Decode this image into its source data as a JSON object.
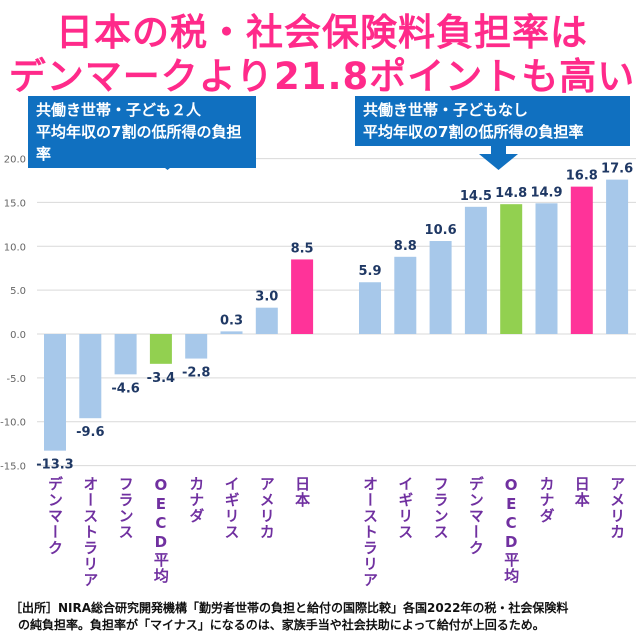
{
  "title": {
    "line1": "日本の税・社会保険料負担率は",
    "line2": "デンマークより21.8ポイントも高い"
  },
  "callouts": [
    {
      "line1": "共働き世帯・子ども２人",
      "line2": "平均年収の7割の低所得の負担率"
    },
    {
      "line1": "共働き世帯・子どもなし",
      "line2": "平均年収の7割の低所得の負担率"
    }
  ],
  "note": {
    "line1": "［出所］NIRA総合研究開発機構「勤労者世帯の負担と給付の国際比較」各国2022年の税・社会保険料",
    "line2": "の純負担率。負担率が「マイナス」になるのは、家族手当や社会扶助によって給付が上回るため。"
  },
  "colors": {
    "default": "#a7c8ea",
    "oecd": "#92d050",
    "japan": "#ff3399",
    "label": "#7030a0",
    "value": "#1f3864"
  },
  "chart_data": {
    "type": "bar",
    "ylim": [
      -15,
      20
    ],
    "yticks": [
      "20.0",
      "15.0",
      "10.0",
      "5.0",
      "0.0",
      "-5.0",
      "-10.0",
      "-15.0"
    ],
    "ytick_values": [
      20,
      15,
      10,
      5,
      0,
      -5,
      -10,
      -15
    ],
    "grid": true,
    "groups": [
      {
        "name": "共働き世帯・子ども２人",
        "categories": [
          "デンマーク",
          "オーストラリア",
          "フランス",
          "OECD平均",
          "カナダ",
          "イギリス",
          "アメリカ",
          "日本"
        ],
        "values": [
          -13.3,
          -9.6,
          -4.6,
          -3.4,
          -2.8,
          0.3,
          3.0,
          8.5
        ],
        "labels": [
          "-13.3",
          "-9.6",
          "-4.6",
          "-3.4",
          "-2.8",
          "0.3",
          "3.0",
          "8.5"
        ]
      },
      {
        "name": "共働き世帯・子どもなし",
        "categories": [
          "オーストラリア",
          "イギリス",
          "フランス",
          "デンマーク",
          "OECD平均",
          "カナダ",
          "日本",
          "アメリカ"
        ],
        "values": [
          5.9,
          8.8,
          10.6,
          14.5,
          14.8,
          14.9,
          16.8,
          17.6
        ],
        "labels": [
          "5.9",
          "8.8",
          "10.6",
          "14.5",
          "14.8",
          "14.9",
          "16.8",
          "17.6"
        ]
      }
    ]
  }
}
